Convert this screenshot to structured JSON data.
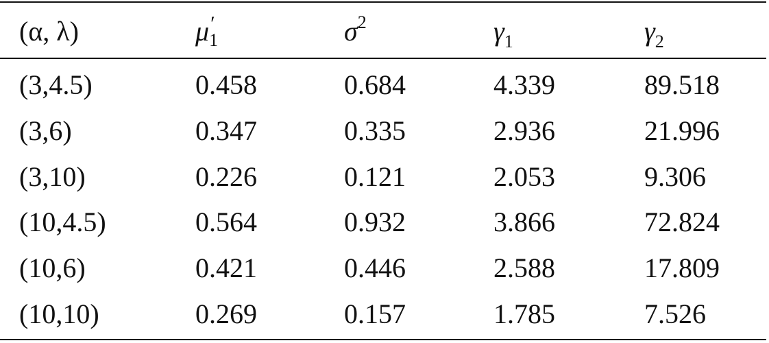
{
  "table": {
    "header": [
      {
        "text": "(α, λ)"
      },
      {
        "text": "μ",
        "sup": "′",
        "sub": "1"
      },
      {
        "text": "σ",
        "sup": "2"
      },
      {
        "text": "γ",
        "sub": "1"
      },
      {
        "text": "γ",
        "sub": "2"
      }
    ],
    "rows": [
      [
        "(3,4.5)",
        0.458,
        0.684,
        4.339,
        89.518
      ],
      [
        "(3,6)",
        0.347,
        0.335,
        2.936,
        21.996
      ],
      [
        "(3,10)",
        0.226,
        0.121,
        2.053,
        9.306
      ],
      [
        "(10,4.5)",
        0.564,
        0.932,
        3.866,
        72.824
      ],
      [
        "(10,6)",
        0.421,
        0.446,
        2.588,
        17.809
      ],
      [
        "(10,10)",
        0.269,
        0.157,
        1.785,
        7.526
      ]
    ]
  }
}
